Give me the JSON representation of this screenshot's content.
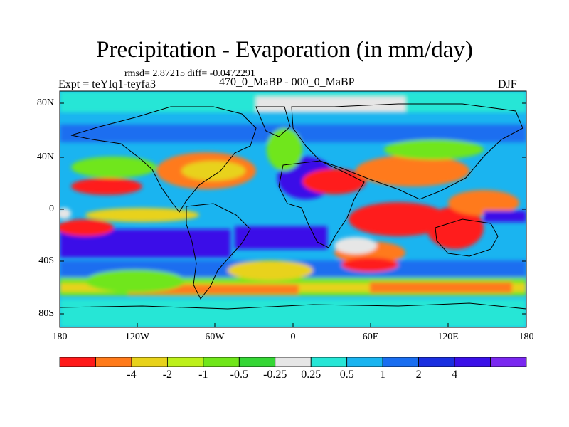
{
  "map": {
    "title": "Precipitation - Evaporation (in mm/day)",
    "stats_line": "rmsd= 2.87215 diff= -0.0472291",
    "experiment_label": "Expt = teYIq1-teyfa3",
    "difference_label": "470_0_MaBP - 000_0_MaBP",
    "season": "DJF",
    "lat_ticks": [
      "80N",
      "40N",
      "0",
      "40S",
      "80S"
    ],
    "lon_ticks": [
      "180",
      "120W",
      "60W",
      "0",
      "60E",
      "120E",
      "180"
    ],
    "colorbar": {
      "labels": [
        "-4",
        "-2",
        "-1",
        "-0.5",
        "-0.25",
        "0.25",
        "0.5",
        "1",
        "2",
        "4"
      ],
      "colors": [
        "#ff1a1a",
        "#ff7a1a",
        "#e8d21a",
        "#bdf01a",
        "#70e61a",
        "#35d635",
        "#e6e6e6",
        "#26e6d6",
        "#1ab4f0",
        "#1a6ef0",
        "#1a2fe0",
        "#3a10e8",
        "#7a28f0"
      ]
    },
    "palette": {
      "strong_neg": "#ff1a1a",
      "neg": "#ff7a1a",
      "mild_neg": "#e8d21a",
      "slight_neg": "#bdf01a",
      "near_zero": "#e6e6e6",
      "slight_pos": "#26e6d6",
      "mild_pos": "#1ab4f0",
      "pos": "#1a2fe0",
      "strong_pos": "#7a28f0"
    }
  }
}
